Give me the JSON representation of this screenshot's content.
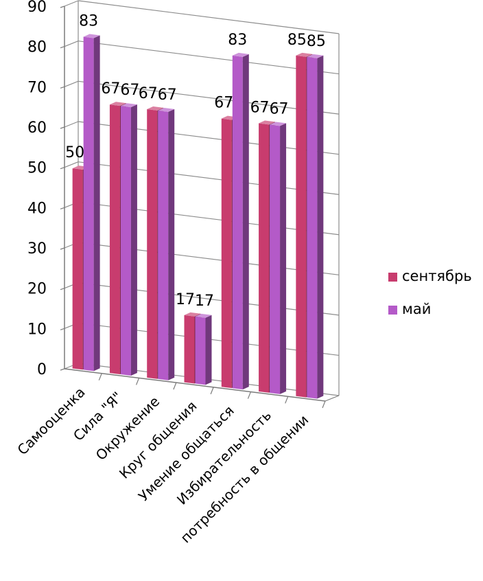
{
  "chart_data": {
    "type": "bar",
    "style": "3d-clustered-column",
    "categories": [
      "Самооценка",
      "Сила \"Я\"",
      "Окружение",
      "Круг общения",
      "Умение общаться",
      "Избирательность",
      "потребность в общении"
    ],
    "series": [
      {
        "name": "сентябрь",
        "values": [
          50,
          67,
          67,
          17,
          67,
          67,
          85
        ],
        "color": "#c83c6e"
      },
      {
        "name": "май",
        "values": [
          83,
          67,
          67,
          17,
          83,
          67,
          85
        ],
        "color": "#b45ac8"
      }
    ],
    "ylim": [
      0,
      90
    ],
    "yticks": [
      "0",
      "10",
      "20",
      "30",
      "40",
      "50",
      "60",
      "70",
      "80",
      "90"
    ],
    "grid": true,
    "legend": "right"
  }
}
